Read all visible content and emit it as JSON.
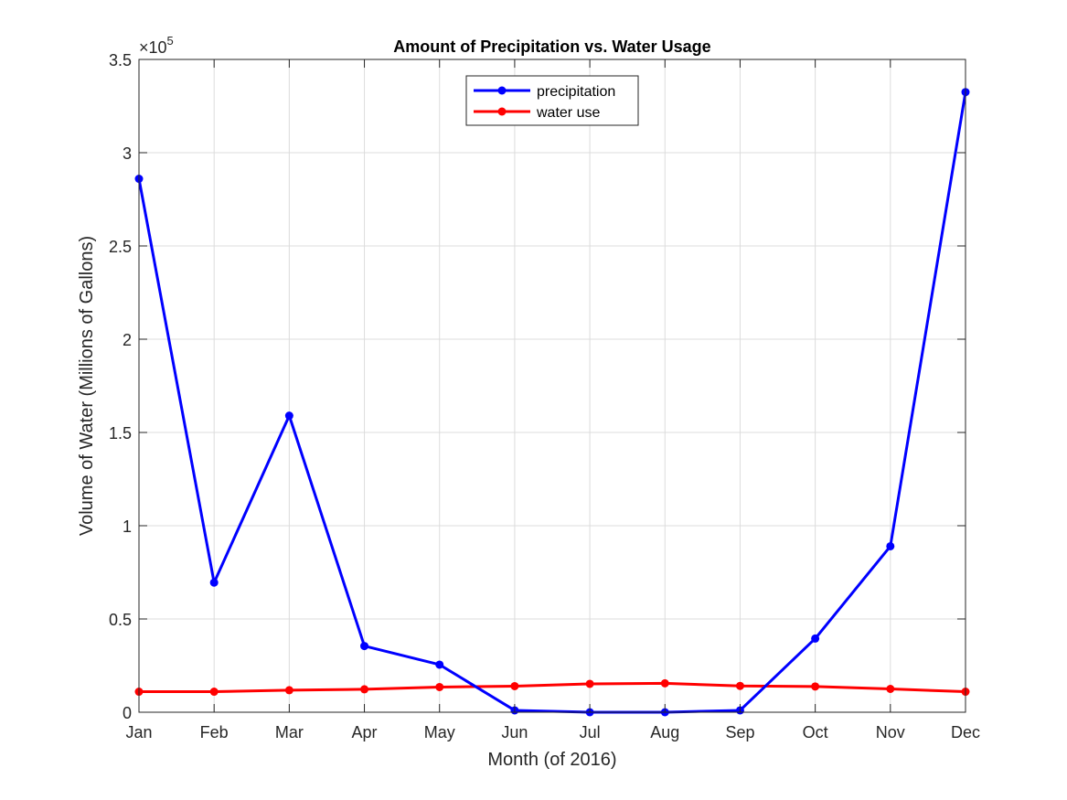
{
  "chart_data": {
    "type": "line",
    "title": "Amount of Precipitation vs. Water Usage",
    "xlabel": "Month (of 2016)",
    "ylabel": "Volume of Water (Millions of Gallons)",
    "categories": [
      "Jan",
      "Feb",
      "Mar",
      "Apr",
      "May",
      "Jun",
      "Jul",
      "Aug",
      "Sep",
      "Oct",
      "Nov",
      "Dec"
    ],
    "ylim": [
      0,
      350000
    ],
    "yticks": [
      0,
      50000,
      100000,
      150000,
      200000,
      250000,
      300000,
      350000
    ],
    "ytick_labels": [
      "0",
      "0.5",
      "1",
      "1.5",
      "2",
      "2.5",
      "3",
      "3.5"
    ],
    "exponent_label": {
      "base": "×10",
      "power": "5"
    },
    "grid": true,
    "legend_position": "top-center",
    "series": [
      {
        "name": "precipitation",
        "color": "#0000ff",
        "values": [
          286000,
          69500,
          159000,
          35500,
          25500,
          1000,
          0,
          0,
          1000,
          39500,
          89000,
          332500
        ]
      },
      {
        "name": "water use",
        "color": "#ff0000",
        "values": [
          11000,
          11000,
          11800,
          12300,
          13500,
          14000,
          15200,
          15500,
          14100,
          13800,
          12500,
          11000
        ]
      }
    ]
  }
}
